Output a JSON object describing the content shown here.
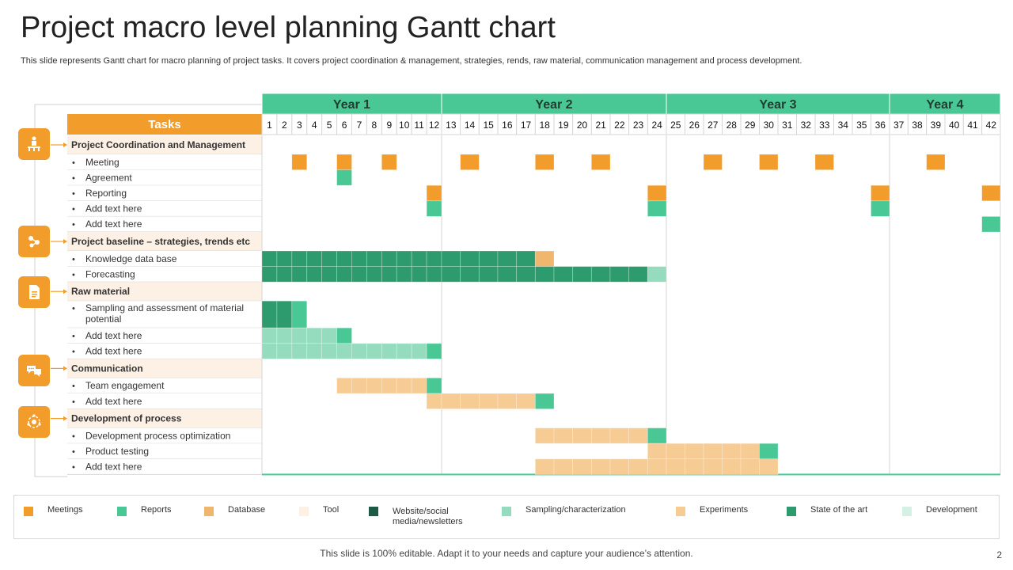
{
  "slide": {
    "title": "Project macro level planning Gantt chart",
    "subtitle": "This slide represents Gantt chart for macro planning of project tasks. It covers project coordination & management, strategies, rends, raw material, communication management and process development.",
    "footer": "This slide is 100% editable. Adapt it to your needs and capture your audience’s attention.",
    "page_number": "2"
  },
  "colors": {
    "meetings": "#f29c2b",
    "reports": "#49c895",
    "database": "#f1b66e",
    "tool": "#fdf1e5",
    "website": "#1d5b46",
    "sampling": "#95dcbe",
    "experiments": "#f6cb94",
    "state_of_art": "#2e9b6e",
    "development": "#d5f1e6",
    "header_green": "#49c895",
    "tasks_orange": "#f29c2b",
    "icon_orange": "#f29c2b"
  },
  "chart_data": {
    "type": "gantt",
    "time_unit": "period",
    "periods": [
      1,
      2,
      3,
      4,
      5,
      6,
      7,
      8,
      9,
      10,
      11,
      12,
      13,
      14,
      15,
      16,
      17,
      18,
      19,
      20,
      21,
      22,
      23,
      24,
      25,
      26,
      27,
      28,
      29,
      30,
      31,
      32,
      33,
      34,
      35,
      36,
      37,
      38,
      39,
      40,
      41,
      42
    ],
    "years": [
      {
        "label": "Year 1",
        "start": 1,
        "end": 12
      },
      {
        "label": "Year 2",
        "start": 13,
        "end": 24
      },
      {
        "label": "Year 3",
        "start": 25,
        "end": 36
      },
      {
        "label": "Year 4",
        "start": 37,
        "end": 42
      }
    ],
    "tasks_header": "Tasks",
    "rows": [
      {
        "label": "Project Coordination and Management",
        "type": "group",
        "icon": "presenter-icon"
      },
      {
        "label": "Meeting",
        "type": "task",
        "bars": [
          {
            "start": 3,
            "end": 3,
            "cat": "meetings"
          },
          {
            "start": 6,
            "end": 6,
            "cat": "meetings"
          },
          {
            "start": 9,
            "end": 9,
            "cat": "meetings"
          },
          {
            "start": 14,
            "end": 14,
            "cat": "meetings"
          },
          {
            "start": 18,
            "end": 18,
            "cat": "meetings"
          },
          {
            "start": 21,
            "end": 21,
            "cat": "meetings"
          },
          {
            "start": 27,
            "end": 27,
            "cat": "meetings"
          },
          {
            "start": 30,
            "end": 30,
            "cat": "meetings"
          },
          {
            "start": 33,
            "end": 33,
            "cat": "meetings"
          },
          {
            "start": 39,
            "end": 39,
            "cat": "meetings"
          }
        ]
      },
      {
        "label": "Agreement",
        "type": "task",
        "bars": [
          {
            "start": 6,
            "end": 6,
            "cat": "reports"
          }
        ]
      },
      {
        "label": "Reporting",
        "type": "task",
        "bars": [
          {
            "start": 12,
            "end": 12,
            "cat": "meetings"
          },
          {
            "start": 24,
            "end": 24,
            "cat": "meetings"
          },
          {
            "start": 36,
            "end": 36,
            "cat": "meetings"
          },
          {
            "start": 42,
            "end": 42,
            "cat": "meetings"
          }
        ]
      },
      {
        "label": "Add text here",
        "type": "task",
        "bars": [
          {
            "start": 12,
            "end": 12,
            "cat": "reports"
          },
          {
            "start": 24,
            "end": 24,
            "cat": "reports"
          },
          {
            "start": 36,
            "end": 36,
            "cat": "reports"
          }
        ]
      },
      {
        "label": "Add text here",
        "type": "task",
        "bars": [
          {
            "start": 42,
            "end": 42,
            "cat": "reports"
          }
        ]
      },
      {
        "label": "Project baseline – strategies, trends etc",
        "type": "group",
        "icon": "strategy-icon"
      },
      {
        "label": "Knowledge data base",
        "type": "task",
        "bars": [
          {
            "start": 1,
            "end": 17,
            "cat": "state_of_art"
          },
          {
            "start": 18,
            "end": 18,
            "cat": "database"
          }
        ]
      },
      {
        "label": "Forecasting",
        "type": "task",
        "bars": [
          {
            "start": 1,
            "end": 23,
            "cat": "state_of_art"
          },
          {
            "start": 24,
            "end": 24,
            "cat": "sampling"
          }
        ]
      },
      {
        "label": "Raw material",
        "type": "group",
        "icon": "document-icon"
      },
      {
        "label": "Sampling and assessment of material potential",
        "type": "task",
        "tall": true,
        "bars": [
          {
            "start": 1,
            "end": 2,
            "cat": "state_of_art"
          },
          {
            "start": 3,
            "end": 3,
            "cat": "reports"
          }
        ]
      },
      {
        "label": "Add text here",
        "type": "task",
        "bars": [
          {
            "start": 1,
            "end": 5,
            "cat": "sampling"
          },
          {
            "start": 6,
            "end": 6,
            "cat": "reports"
          }
        ]
      },
      {
        "label": "Add text here",
        "type": "task",
        "bars": [
          {
            "start": 1,
            "end": 11,
            "cat": "sampling"
          },
          {
            "start": 12,
            "end": 12,
            "cat": "reports"
          }
        ]
      },
      {
        "label": "Communication",
        "type": "group",
        "icon": "chat-icon"
      },
      {
        "label": "Team engagement",
        "type": "task",
        "bars": [
          {
            "start": 6,
            "end": 11,
            "cat": "experiments"
          },
          {
            "start": 12,
            "end": 12,
            "cat": "reports"
          }
        ]
      },
      {
        "label": "Add text here",
        "type": "task",
        "bars": [
          {
            "start": 12,
            "end": 17,
            "cat": "experiments"
          },
          {
            "start": 18,
            "end": 18,
            "cat": "reports"
          }
        ]
      },
      {
        "label": "Development of process",
        "type": "group",
        "icon": "gear-cycle-icon"
      },
      {
        "label": "Development process optimization",
        "type": "task",
        "bars": [
          {
            "start": 18,
            "end": 23,
            "cat": "experiments"
          },
          {
            "start": 24,
            "end": 24,
            "cat": "reports"
          }
        ]
      },
      {
        "label": "Product testing",
        "type": "task",
        "bars": [
          {
            "start": 24,
            "end": 29,
            "cat": "experiments"
          },
          {
            "start": 30,
            "end": 30,
            "cat": "reports"
          }
        ]
      },
      {
        "label": "Add text here",
        "type": "task",
        "bars": [
          {
            "start": 18,
            "end": 30,
            "cat": "experiments"
          }
        ]
      }
    ],
    "legend": [
      {
        "key": "meetings",
        "label": "Meetings"
      },
      {
        "key": "reports",
        "label": "Reports"
      },
      {
        "key": "database",
        "label": "Database"
      },
      {
        "key": "tool",
        "label": "Tool"
      },
      {
        "key": "website",
        "label": "Website/social media/newsletters"
      },
      {
        "key": "sampling",
        "label": "Sampling/characterization"
      },
      {
        "key": "experiments",
        "label": "Experiments"
      },
      {
        "key": "state_of_art",
        "label": "State of the art"
      },
      {
        "key": "development",
        "label": "Development"
      }
    ]
  }
}
